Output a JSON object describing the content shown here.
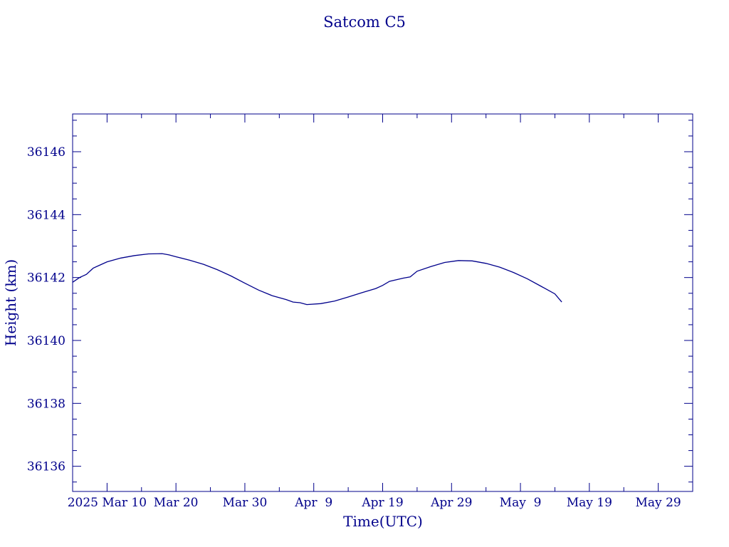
{
  "chart_data": {
    "type": "line",
    "title": "Satcom C5",
    "xlabel": "Time(UTC)",
    "ylabel": "Height (km)",
    "xlim": [
      "2025-03-05",
      "2025-06-03"
    ],
    "ylim": [
      36135.2,
      36147.2
    ],
    "x_ticks": [
      {
        "date": "2025-03-10",
        "label": "2025 Mar 10"
      },
      {
        "date": "2025-03-20",
        "label": "Mar 20"
      },
      {
        "date": "2025-03-30",
        "label": "Mar 30"
      },
      {
        "date": "2025-04-09",
        "label": "Apr  9"
      },
      {
        "date": "2025-04-19",
        "label": "Apr 19"
      },
      {
        "date": "2025-04-29",
        "label": "Apr 29"
      },
      {
        "date": "2025-05-09",
        "label": "May  9"
      },
      {
        "date": "2025-05-19",
        "label": "May 19"
      },
      {
        "date": "2025-05-29",
        "label": "May 29"
      }
    ],
    "y_ticks": [
      36136,
      36138,
      36140,
      36142,
      36144,
      36146
    ],
    "grid": false,
    "line_color": "#00008b",
    "series": [
      {
        "x": [
          "2025-03-05",
          "2025-03-06",
          "2025-03-07",
          "2025-03-08",
          "2025-03-09",
          "2025-03-10",
          "2025-03-12",
          "2025-03-14",
          "2025-03-16",
          "2025-03-18",
          "2025-03-19",
          "2025-03-20",
          "2025-03-22",
          "2025-03-24",
          "2025-03-26",
          "2025-03-28",
          "2025-03-30",
          "2025-04-01",
          "2025-04-03",
          "2025-04-05",
          "2025-04-06",
          "2025-04-07",
          "2025-04-08",
          "2025-04-10",
          "2025-04-12",
          "2025-04-14",
          "2025-04-16",
          "2025-04-18",
          "2025-04-19",
          "2025-04-20",
          "2025-04-22",
          "2025-04-23",
          "2025-04-24",
          "2025-04-26",
          "2025-04-28",
          "2025-04-30",
          "2025-05-02",
          "2025-05-04",
          "2025-05-06",
          "2025-05-08",
          "2025-05-10",
          "2025-05-12",
          "2025-05-14",
          "2025-05-15"
        ],
        "y": [
          36141.85,
          36142.0,
          36142.1,
          36142.3,
          36142.4,
          36142.5,
          36142.62,
          36142.7,
          36142.75,
          36142.76,
          36142.72,
          36142.66,
          36142.55,
          36142.42,
          36142.25,
          36142.05,
          36141.82,
          36141.6,
          36141.42,
          36141.3,
          36141.22,
          36141.2,
          36141.14,
          36141.17,
          36141.25,
          36141.38,
          36141.52,
          36141.65,
          36141.75,
          36141.88,
          36141.98,
          36142.02,
          36142.2,
          36142.35,
          36142.48,
          36142.54,
          36142.53,
          36142.45,
          36142.33,
          36142.16,
          36141.96,
          36141.72,
          36141.48,
          36141.22
        ]
      }
    ]
  }
}
